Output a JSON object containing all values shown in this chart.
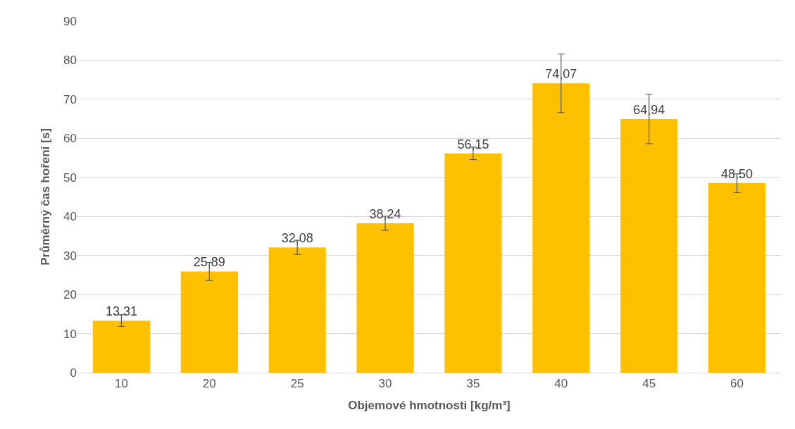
{
  "chart_data": {
    "type": "bar",
    "xlabel": "Objemové hmotnosti [kg/m³]",
    "ylabel": "Průměrný čas hoření [s]",
    "categories": [
      "10",
      "20",
      "25",
      "30",
      "35",
      "40",
      "45",
      "60"
    ],
    "values": [
      13.31,
      25.89,
      32.08,
      38.24,
      56.15,
      74.07,
      64.94,
      48.5
    ],
    "value_labels": [
      "13,31",
      "25,89",
      "32,08",
      "38,24",
      "56,15",
      "74,07",
      "64,94",
      "48,50"
    ],
    "errors": [
      1.5,
      2.3,
      1.8,
      1.8,
      1.6,
      7.5,
      6.3,
      2.4
    ],
    "color": "#ffc000",
    "ylim": [
      0,
      90
    ],
    "yticks": [
      0,
      10,
      20,
      30,
      40,
      50,
      60,
      70,
      80,
      90
    ],
    "grid": "y"
  }
}
